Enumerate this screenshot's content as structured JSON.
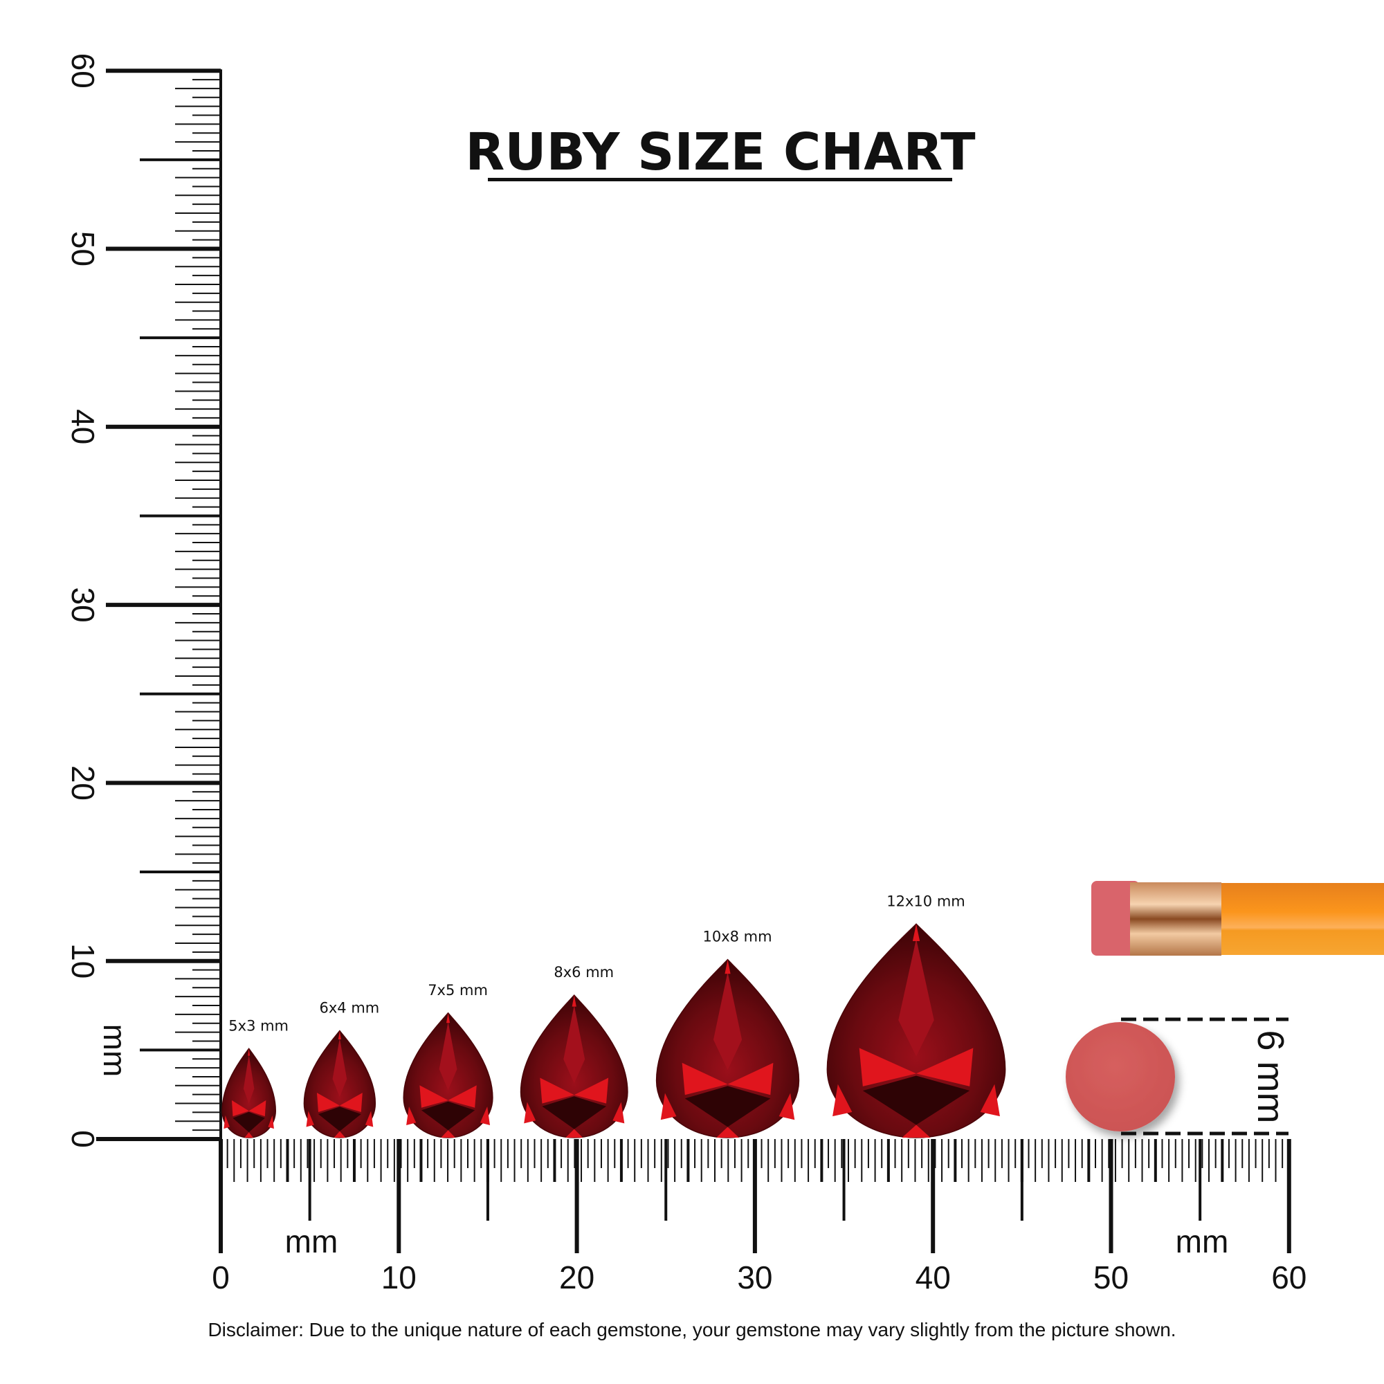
{
  "title": "RUBY SIZE CHART",
  "ruler": {
    "unit_label": "mm",
    "min": 0,
    "max": 60,
    "major_step": 10,
    "labels": [
      "0",
      "10",
      "20",
      "30",
      "40",
      "50",
      "60"
    ]
  },
  "gems": [
    {
      "label": "5x3 mm",
      "length_mm": 5,
      "width_mm": 3
    },
    {
      "label": "6x4 mm",
      "length_mm": 6,
      "width_mm": 4
    },
    {
      "label": "7x5 mm",
      "length_mm": 7,
      "width_mm": 5
    },
    {
      "label": "8x6 mm",
      "length_mm": 8,
      "width_mm": 6
    },
    {
      "label": "10x8 mm",
      "length_mm": 10,
      "width_mm": 8
    },
    {
      "label": "12x10 mm",
      "length_mm": 12,
      "width_mm": 10
    }
  ],
  "reference": {
    "object": "pencil eraser",
    "measure_label": "6 mm",
    "diameter_mm": 6
  },
  "colors": {
    "ruby_dark": "#4a0509",
    "ruby_mid": "#8e0e17",
    "ruby_bright": "#e0151d",
    "eraser": "#d35a5a",
    "pencil": "#f7931e",
    "ferrule": "#e0a777"
  },
  "disclaimer": "Disclaimer: Due to the unique nature of each gemstone, your gemstone may vary slightly from the picture shown."
}
